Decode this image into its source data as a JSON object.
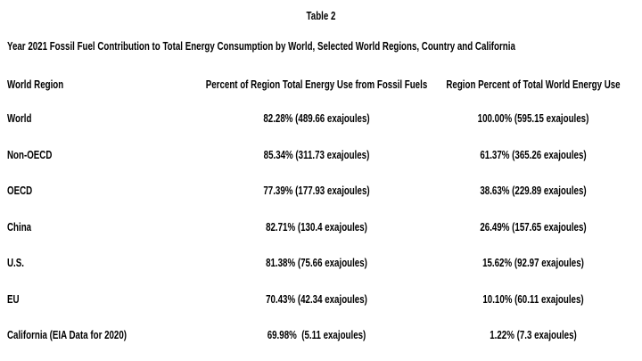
{
  "header": {
    "title": "Table 2",
    "subtitle": "Year 2021 Fossil Fuel Contribution to Total Energy Consumption by World, Selected World Regions, Country and California"
  },
  "table": {
    "columns": [
      "World Region",
      "Percent of Region Total Energy Use from Fossil Fuels",
      "Region Percent of Total World Energy Use"
    ],
    "rows": [
      [
        "World",
        "82.28% (489.66 exajoules)",
        "100.00% (595.15 exajoules)"
      ],
      [
        "Non-OECD",
        "85.34% (311.73 exajoules)",
        "61.37% (365.26 exajoules)"
      ],
      [
        "OECD",
        "77.39% (177.93 exajoules)",
        "38.63% (229.89 exajoules)"
      ],
      [
        "China",
        "82.71% (130.4 exajoules)",
        "26.49% (157.65 exajoules)"
      ],
      [
        "U.S.",
        "81.38% (75.66 exajoules)",
        "15.62% (92.97 exajoules)"
      ],
      [
        "EU",
        "70.43% (42.34 exajoules)",
        "10.10% (60.11 exajoules)"
      ],
      [
        "California (EIA Data for 2020)",
        "69.98%  (5.11 exajoules)",
        "1.22% (7.3 exajoules)"
      ]
    ]
  }
}
